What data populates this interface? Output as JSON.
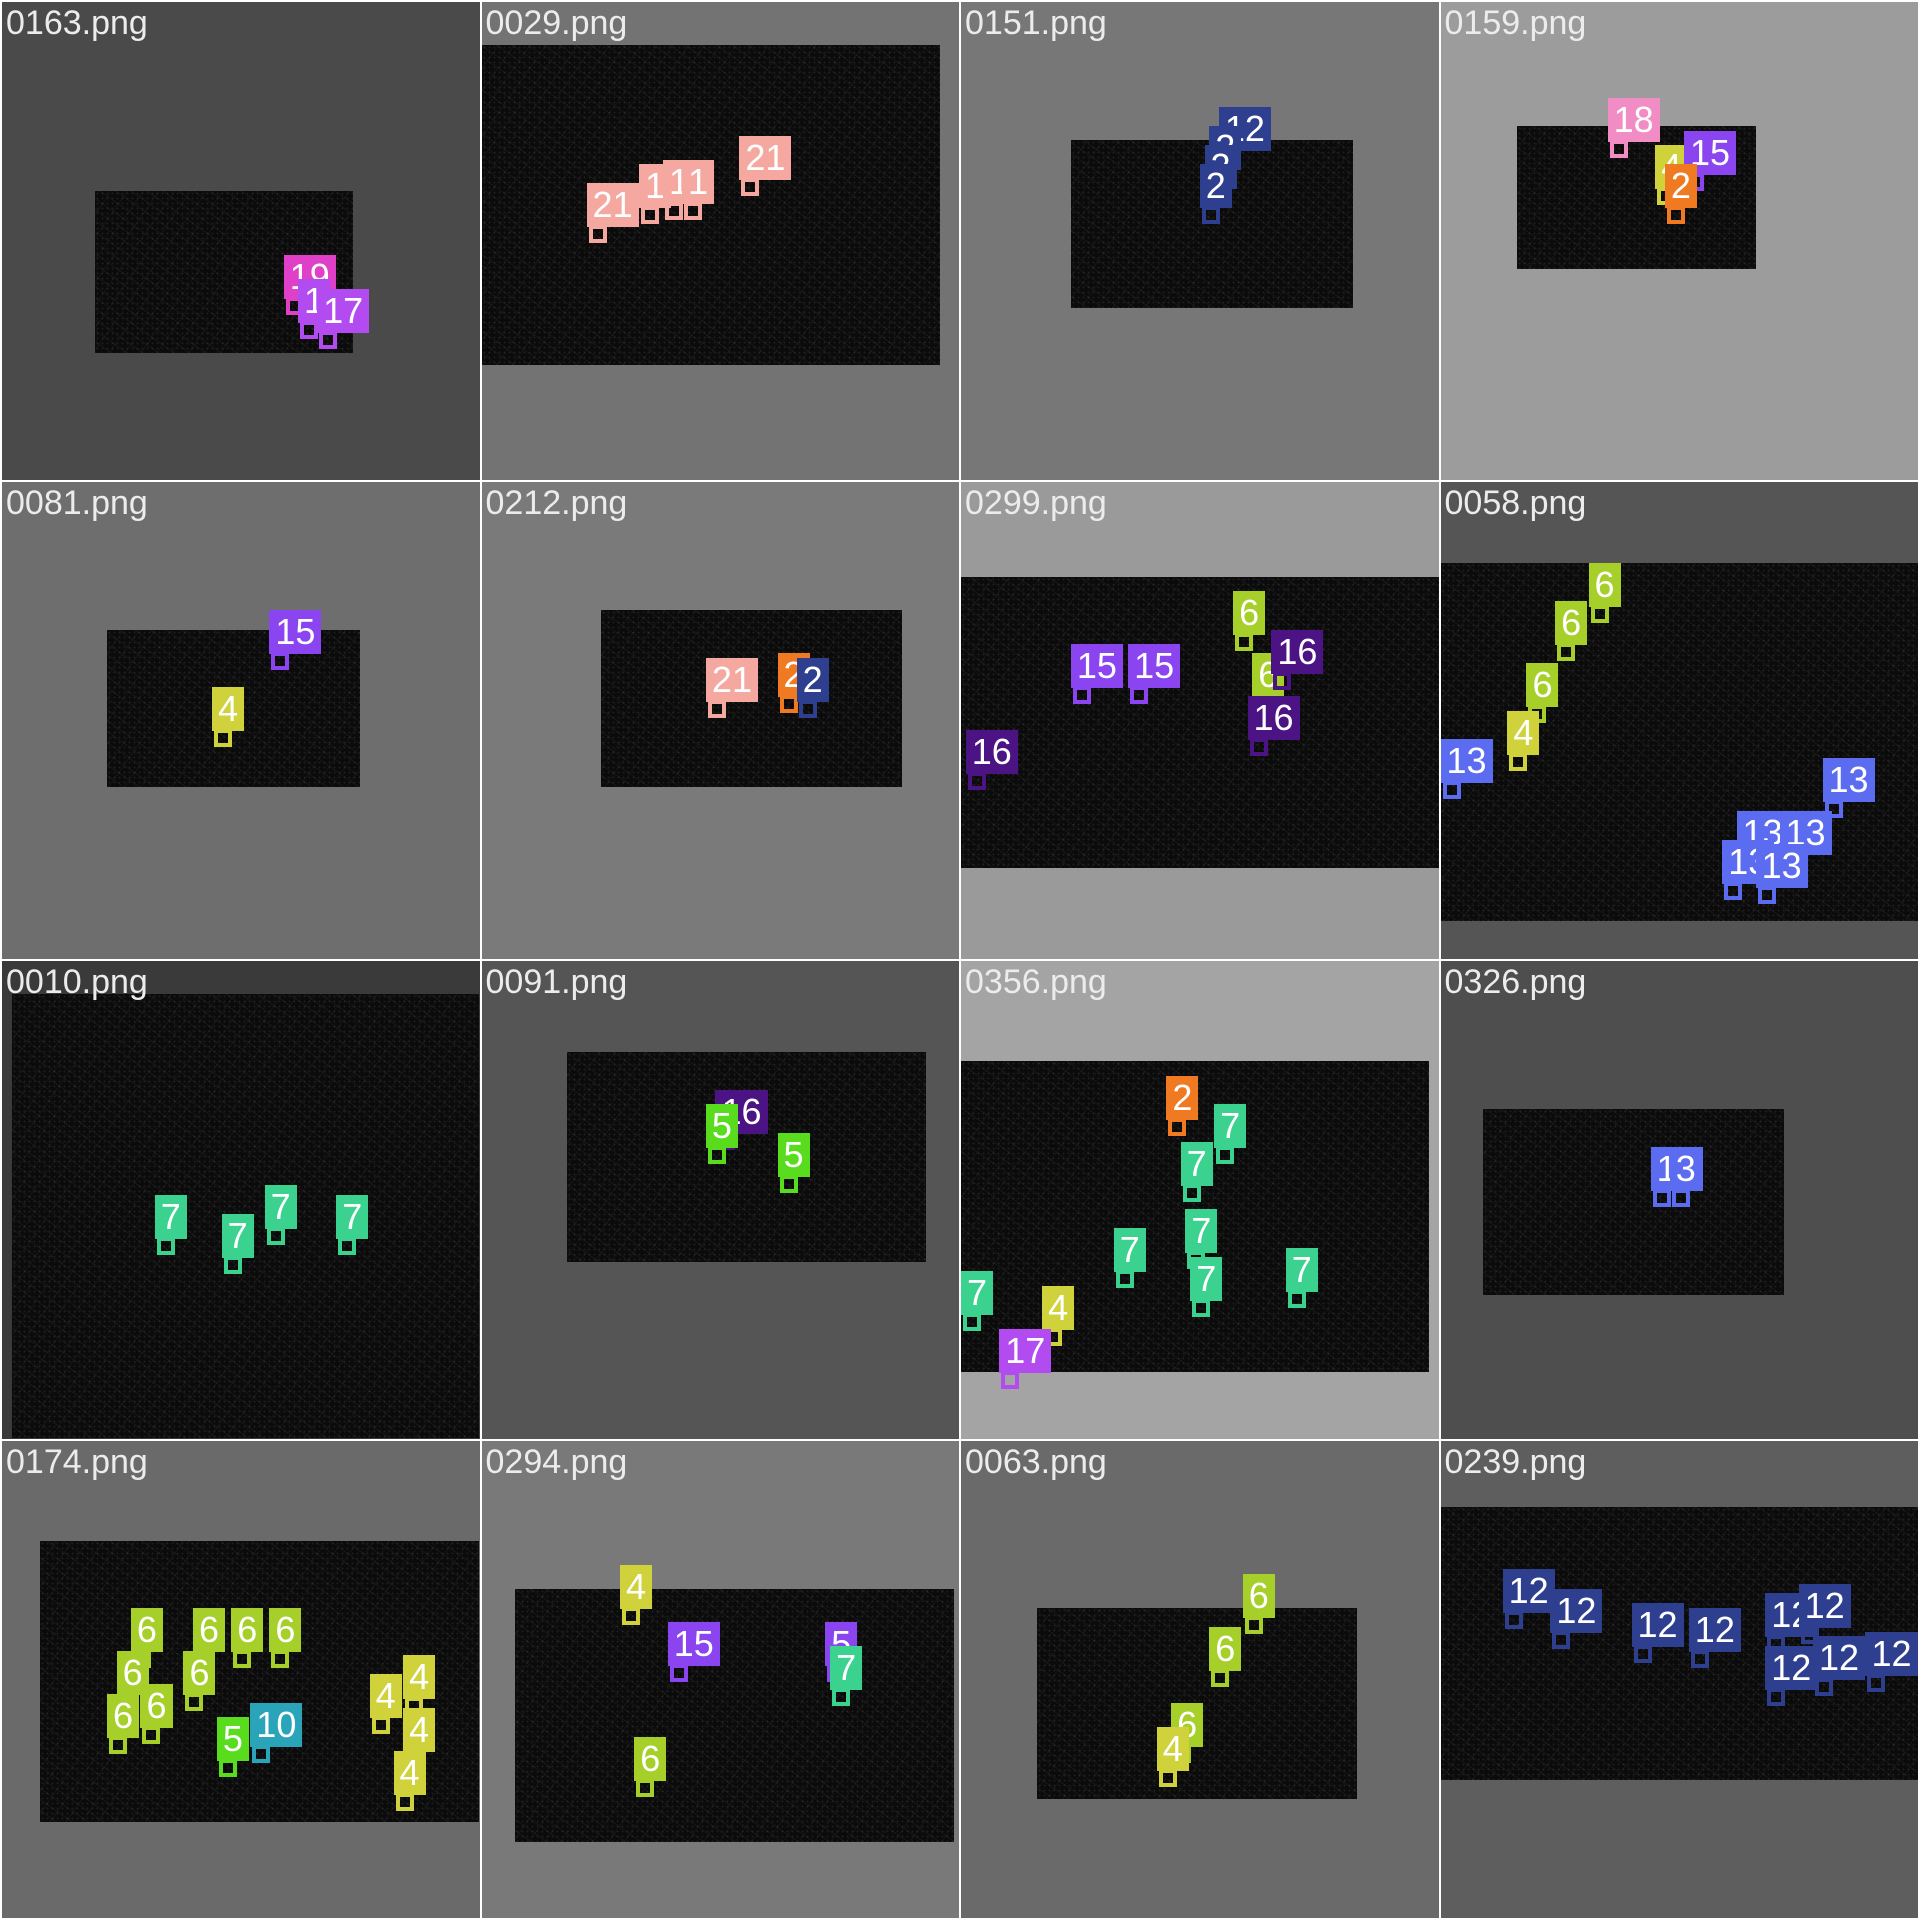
{
  "palette": {
    "2": "#f07a22",
    "4": "#cfd23a",
    "5": "#5adc1e",
    "6": "#a6cf2a",
    "7": "#3ad28e",
    "10": "#2aa4b8",
    "12": "#2e3f8f",
    "13": "#5c6cf0",
    "15": "#8a44f0",
    "16": "#4b1383",
    "17": "#b34cf0",
    "18": "#f28cc4",
    "19": "#e040c8",
    "21": "#f4a8a0"
  },
  "tiles": [
    {
      "filename": "0163.png",
      "bg": "#4a4a4a",
      "dets": [
        {
          "label": "19",
          "cls": "19"
        },
        {
          "label": "1",
          "cls": "17"
        },
        {
          "label": "17",
          "cls": "17"
        }
      ]
    },
    {
      "filename": "0029.png",
      "bg": "#737373",
      "dets": [
        {
          "label": "21",
          "cls": "21"
        },
        {
          "label": "1",
          "cls": "21"
        },
        {
          "label": "1",
          "cls": "21"
        },
        {
          "label": "1",
          "cls": "21"
        },
        {
          "label": "21",
          "cls": "21"
        }
      ]
    },
    {
      "filename": "0151.png",
      "bg": "#777777",
      "dets": [
        {
          "label": "12",
          "cls": "12"
        },
        {
          "label": "2",
          "cls": "12"
        },
        {
          "label": "2",
          "cls": "12"
        },
        {
          "label": "2",
          "cls": "12"
        }
      ]
    },
    {
      "filename": "0159.png",
      "bg": "#9c9c9c",
      "dets": [
        {
          "label": "18",
          "cls": "18"
        },
        {
          "label": "4",
          "cls": "4"
        },
        {
          "label": "15",
          "cls": "15"
        },
        {
          "label": "2",
          "cls": "2"
        }
      ]
    },
    {
      "filename": "0081.png",
      "bg": "#6e6e6e",
      "dets": [
        {
          "label": "15",
          "cls": "15"
        },
        {
          "label": "4",
          "cls": "4"
        }
      ]
    },
    {
      "filename": "0212.png",
      "bg": "#7a7a7a",
      "dets": [
        {
          "label": "21",
          "cls": "21"
        },
        {
          "label": "2",
          "cls": "2"
        },
        {
          "label": "2",
          "cls": "12"
        }
      ]
    },
    {
      "filename": "0299.png",
      "bg": "#9a9a9a",
      "dets": [
        {
          "label": "15",
          "cls": "15"
        },
        {
          "label": "15",
          "cls": "15"
        },
        {
          "label": "6",
          "cls": "6"
        },
        {
          "label": "6",
          "cls": "6"
        },
        {
          "label": "16",
          "cls": "16"
        },
        {
          "label": "16",
          "cls": "16"
        },
        {
          "label": "16",
          "cls": "16"
        }
      ]
    },
    {
      "filename": "0058.png",
      "bg": "#555555",
      "dets": [
        {
          "label": "6",
          "cls": "6"
        },
        {
          "label": "6",
          "cls": "6"
        },
        {
          "label": "6",
          "cls": "6"
        },
        {
          "label": "4",
          "cls": "4"
        },
        {
          "label": "13",
          "cls": "13"
        },
        {
          "label": "13",
          "cls": "13"
        },
        {
          "label": "13",
          "cls": "13"
        },
        {
          "label": "13",
          "cls": "13"
        },
        {
          "label": "13",
          "cls": "13"
        },
        {
          "label": "13",
          "cls": "13"
        }
      ]
    },
    {
      "filename": "0010.png",
      "bg": "#3a3a3a",
      "dets": [
        {
          "label": "7",
          "cls": "7"
        },
        {
          "label": "7",
          "cls": "7"
        },
        {
          "label": "7",
          "cls": "7"
        },
        {
          "label": "7",
          "cls": "7"
        }
      ]
    },
    {
      "filename": "0091.png",
      "bg": "#555555",
      "dets": [
        {
          "label": "16",
          "cls": "16"
        },
        {
          "label": "5",
          "cls": "5"
        },
        {
          "label": "5",
          "cls": "5"
        }
      ]
    },
    {
      "filename": "0356.png",
      "bg": "#a4a4a4",
      "dets": [
        {
          "label": "2",
          "cls": "2"
        },
        {
          "label": "7",
          "cls": "7"
        },
        {
          "label": "7",
          "cls": "7"
        },
        {
          "label": "7",
          "cls": "7"
        },
        {
          "label": "7",
          "cls": "7"
        },
        {
          "label": "7",
          "cls": "7"
        },
        {
          "label": "7",
          "cls": "7"
        },
        {
          "label": "7",
          "cls": "7"
        },
        {
          "label": "4",
          "cls": "4"
        },
        {
          "label": "17",
          "cls": "17"
        }
      ]
    },
    {
      "filename": "0326.png",
      "bg": "#4e4e4e",
      "dets": [
        {
          "label": "13",
          "cls": "13"
        },
        {
          "label": "3",
          "cls": "13"
        }
      ]
    },
    {
      "filename": "0174.png",
      "bg": "#6a6a6a",
      "dets": [
        {
          "label": "6",
          "cls": "6"
        },
        {
          "label": "6",
          "cls": "6"
        },
        {
          "label": "6",
          "cls": "6"
        },
        {
          "label": "6",
          "cls": "6"
        },
        {
          "label": "6",
          "cls": "6"
        },
        {
          "label": "6",
          "cls": "6"
        },
        {
          "label": "6",
          "cls": "6"
        },
        {
          "label": "6",
          "cls": "6"
        },
        {
          "label": "10",
          "cls": "10"
        },
        {
          "label": "5",
          "cls": "5"
        },
        {
          "label": "4",
          "cls": "4"
        },
        {
          "label": "4",
          "cls": "4"
        },
        {
          "label": "4",
          "cls": "4"
        },
        {
          "label": "4",
          "cls": "4"
        }
      ]
    },
    {
      "filename": "0294.png",
      "bg": "#797979",
      "dets": [
        {
          "label": "4",
          "cls": "4"
        },
        {
          "label": "15",
          "cls": "15"
        },
        {
          "label": "5",
          "cls": "15"
        },
        {
          "label": "7",
          "cls": "7"
        },
        {
          "label": "6",
          "cls": "6"
        }
      ]
    },
    {
      "filename": "0063.png",
      "bg": "#6a6a6a",
      "dets": [
        {
          "label": "6",
          "cls": "6"
        },
        {
          "label": "6",
          "cls": "6"
        },
        {
          "label": "6",
          "cls": "6"
        },
        {
          "label": "4",
          "cls": "4"
        }
      ]
    },
    {
      "filename": "0239.png",
      "bg": "#5e5e5e",
      "dets": [
        {
          "label": "12",
          "cls": "12"
        },
        {
          "label": "12",
          "cls": "12"
        },
        {
          "label": "12",
          "cls": "12"
        },
        {
          "label": "12",
          "cls": "12"
        },
        {
          "label": "12",
          "cls": "12"
        },
        {
          "label": "12",
          "cls": "12"
        },
        {
          "label": "12",
          "cls": "12"
        },
        {
          "label": "12",
          "cls": "12"
        },
        {
          "label": "12",
          "cls": "12"
        }
      ]
    }
  ]
}
